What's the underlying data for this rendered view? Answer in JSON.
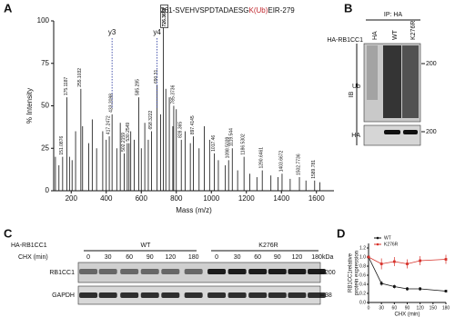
{
  "panel_letters": [
    "A",
    "B",
    "C",
    "D"
  ],
  "chart_data": [
    {
      "type": "spectrum",
      "title_parts": [
        "261-SVEHVSPDTADAESG",
        "K(Ub)",
        "EIR-279"
      ],
      "title_colors": [
        "#111111",
        "#c0262d",
        "#111111"
      ],
      "x_label": "Mass (m/z)",
      "y_label": "% Intensity",
      "xlim": [
        100,
        1700
      ],
      "xticks": [
        200,
        400,
        600,
        800,
        1000,
        1200,
        1400,
        1600
      ],
      "ylim": [
        0,
        100
      ],
      "yticks": [
        0,
        25,
        50,
        75,
        100
      ],
      "peak_color": "#111111",
      "peak_groups": [
        {
          "labeled": false,
          "boxed": false,
          "label_color": "#111111",
          "x": [
            110,
            130,
            190,
            205,
            225,
            265,
            300,
            320,
            345,
            380,
            400,
            460,
            480,
            520,
            540,
            560,
            600,
            620,
            640,
            710,
            740,
            760,
            780,
            800,
            850,
            880,
            930,
            960,
            990,
            1040,
            1080,
            1150,
            1220,
            1260,
            1340,
            1380,
            1450,
            1540,
            1620
          ],
          "values": [
            20,
            15,
            20,
            18,
            35,
            38,
            28,
            42,
            25,
            35,
            30,
            25,
            40,
            28,
            35,
            30,
            25,
            40,
            30,
            45,
            60,
            55,
            38,
            48,
            35,
            28,
            25,
            38,
            30,
            18,
            15,
            12,
            10,
            8,
            9,
            8,
            7,
            6,
            5
          ]
        },
        {
          "labeled": true,
          "boxed": false,
          "label_color": "#1f2f9a",
          "x": [
            175.1187,
            255.1032,
            417.2472,
            585.295,
            658.3222,
            785.3736,
            1119.544,
            1290.6461,
            1403.6672,
            1502.7736,
            1589.781
          ],
          "values": [
            55,
            60,
            32,
            55,
            35,
            50,
            25,
            12,
            10,
            8,
            6
          ]
        },
        {
          "labeled": true,
          "boxed": false,
          "label_color": "#c0262d",
          "x": [
            151.0876,
            433.2098,
            502.2159,
            530.2549,
            690.31,
            828.365,
            897.4145,
            1017.46,
            1098.5039,
            1186.5302
          ],
          "values": [
            20,
            45,
            22,
            28,
            62,
            30,
            32,
            22,
            18,
            20
          ]
        },
        {
          "labeled": true,
          "boxed": true,
          "label_color": "#111111",
          "x": [
            726.3688
          ],
          "values": [
            96
          ]
        }
      ],
      "annotations": [
        {
          "text": "y3",
          "x": 433.2098
        },
        {
          "text": "y4",
          "x": 690.31
        }
      ]
    },
    {
      "type": "line",
      "x_label": "CHX (min)",
      "y_label": [
        "RB1CC1relative",
        "protein expression"
      ],
      "x": [
        0,
        30,
        60,
        90,
        120,
        180
      ],
      "xlim": [
        0,
        180
      ],
      "xticks": [
        0,
        30,
        60,
        90,
        120,
        150,
        180
      ],
      "ylim": [
        0,
        1.3
      ],
      "yticks": [
        {
          "value": 0,
          "label": "0.0"
        },
        0.2,
        0.4,
        0.6,
        0.8,
        {
          "value": 1,
          "label": "1.0"
        },
        1.2
      ],
      "legend": "top-left",
      "series": [
        {
          "name": "WT",
          "color": "#111111",
          "values": [
            1,
            0.42,
            0.35,
            0.3,
            0.3,
            0.25
          ],
          "errors": [
            0,
            0.05,
            0.04,
            0.04,
            0.04,
            0.03
          ]
        },
        {
          "name": "K276R",
          "color": "#d7322b",
          "values": [
            1,
            0.85,
            0.9,
            0.85,
            0.92,
            0.95
          ],
          "errors": [
            0,
            0.12,
            0.1,
            0.1,
            0.1,
            0.1
          ]
        }
      ]
    }
  ],
  "blot_b": {
    "ip": "IP: HA",
    "construct": "HA-RB1CC1",
    "lanes": [
      "HA",
      "WT",
      "K276R"
    ],
    "ib": "IB",
    "rows": [
      "Ub",
      "HA"
    ],
    "markers": [
      "200",
      "200"
    ]
  },
  "blot_c": {
    "construct": "HA-RB1CC1",
    "groups": [
      "WT",
      "K276R"
    ],
    "treatment": "CHX (min)",
    "times": [
      "0",
      "30",
      "60",
      "90",
      "120",
      "180"
    ],
    "unit": "kDa",
    "rows": [
      "RB1CC1",
      "GAPDH"
    ],
    "markers": [
      "200",
      "38"
    ]
  }
}
